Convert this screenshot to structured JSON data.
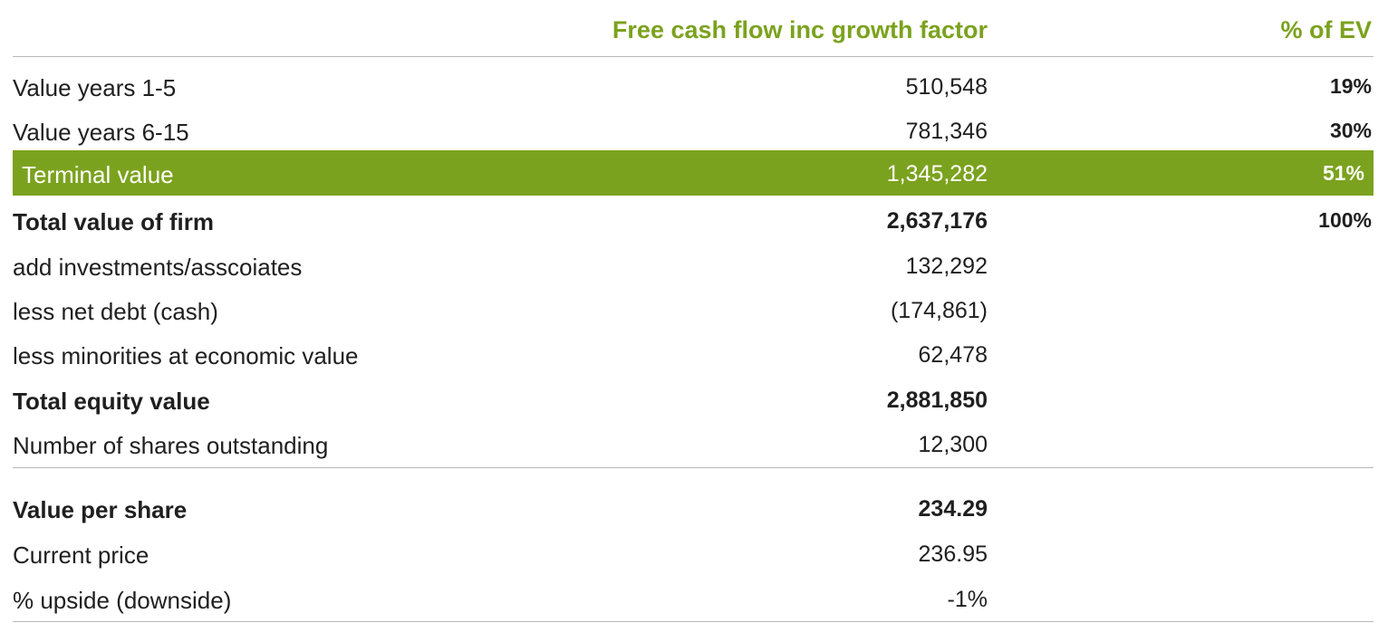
{
  "headers": {
    "fcf": "Free cash flow inc growth factor",
    "ev": "% of EV"
  },
  "rows": [
    {
      "label": "Value years 1-5",
      "value": "510,548",
      "pct": "19%"
    },
    {
      "label": "Value years 6-15",
      "value": "781,346",
      "pct": "30%"
    },
    {
      "label": "Terminal value",
      "value": "1,345,282",
      "pct": "51%"
    },
    {
      "label": "Total value of firm",
      "value": "2,637,176",
      "pct": "100%"
    },
    {
      "label": "add investments/asscoiates",
      "value": "132,292",
      "pct": ""
    },
    {
      "label": "less net debt (cash)",
      "value": "(174,861)",
      "pct": ""
    },
    {
      "label": "less minorities at economic value",
      "value": "62,478",
      "pct": ""
    },
    {
      "label": "Total equity value",
      "value": "2,881,850",
      "pct": ""
    },
    {
      "label": "Number of shares outstanding",
      "value": "12,300",
      "pct": ""
    }
  ],
  "summary": [
    {
      "label": "Value per share",
      "value": "234.29"
    },
    {
      "label": "Current price",
      "value": "236.95"
    },
    {
      "label": "% upside (downside)",
      "value": "-1%"
    }
  ],
  "colors": {
    "accent": "#7ba21e",
    "text": "#1f1f1f",
    "rule": "#b9b9b9"
  }
}
